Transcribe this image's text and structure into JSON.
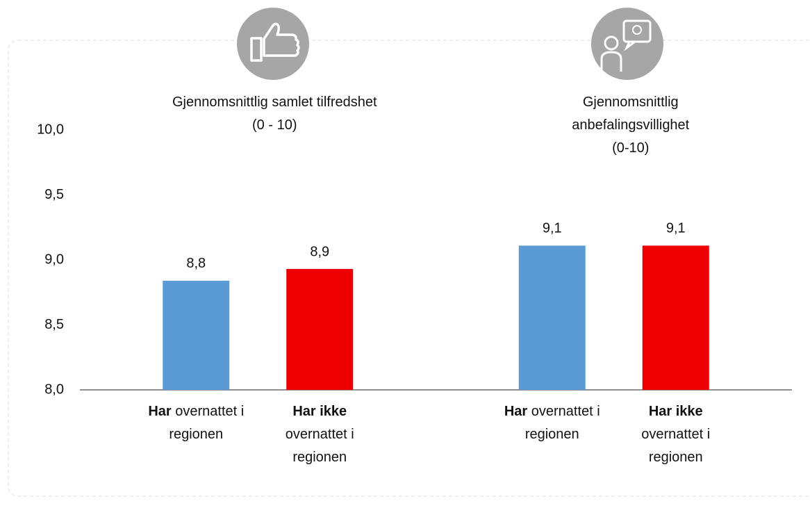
{
  "chart_data": {
    "type": "bar",
    "groups": [
      {
        "title": "Gjennomsnittlig samlet tilfredshet",
        "scale": "(0 - 10)"
      },
      {
        "title": "Gjennomsnittlig anbefalingsvillighet",
        "scale": "(0-10)"
      }
    ],
    "series": [
      {
        "name": [
          "Har",
          "overnattet i regionen"
        ],
        "color": "#5b9bd5",
        "values": [
          8.84,
          9.11
        ],
        "value_labels": [
          "8,8",
          "9,1"
        ]
      },
      {
        "name": [
          "Har ikke",
          "overnattet i regionen"
        ],
        "color": "#ee0000",
        "values": [
          8.93,
          9.11
        ],
        "value_labels": [
          "8,9",
          "9,1"
        ]
      }
    ],
    "ylim": [
      8.0,
      10.0
    ],
    "yticks": [
      {
        "value": 8.0,
        "label": "8,0"
      },
      {
        "value": 8.5,
        "label": "8,5"
      },
      {
        "value": 9.0,
        "label": "9,0"
      },
      {
        "value": 9.5,
        "label": "9,5"
      },
      {
        "value": 10.0,
        "label": "10,0"
      }
    ]
  }
}
